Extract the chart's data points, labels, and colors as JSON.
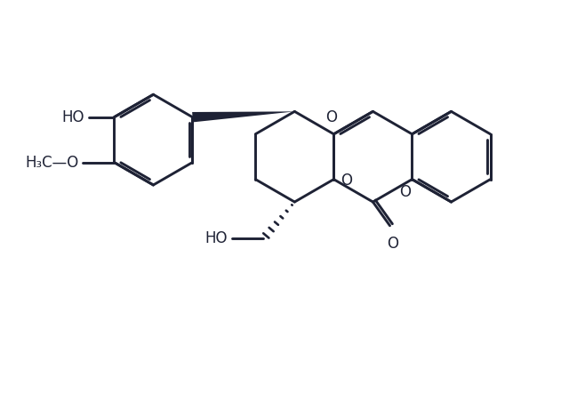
{
  "bg": "#ffffff",
  "lc": "#1e2235",
  "lw": 2.1,
  "lw_thin": 1.5,
  "dbg": 0.055,
  "fs": 12,
  "figsize": [
    6.4,
    4.7
  ],
  "dpi": 100,
  "xlim": [
    0,
    10
  ],
  "ylim": [
    0,
    7.35
  ]
}
